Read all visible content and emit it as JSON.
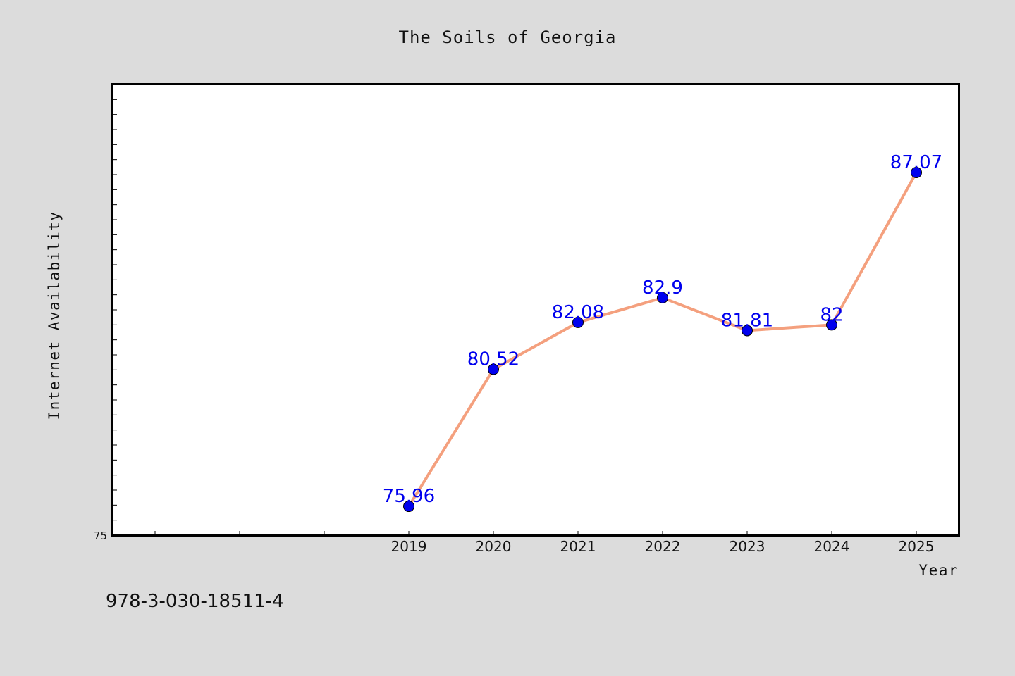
{
  "chart_data": {
    "type": "line",
    "title": "The Soils of Georgia",
    "xlabel": "Year",
    "ylabel": "Internet Availability",
    "x": [
      "2019",
      "2020",
      "2021",
      "2022",
      "2023",
      "2024",
      "2025"
    ],
    "values": [
      75.96,
      80.52,
      82.08,
      82.9,
      81.81,
      82,
      87.07
    ],
    "data_labels": [
      "75.96",
      "80.52",
      "82.08",
      "82.9",
      "81.81",
      "82",
      "87.07"
    ],
    "ylim": [
      75,
      90
    ],
    "y_tick_labels": [
      "75"
    ],
    "grid": false,
    "line_color": "#f4a07e",
    "marker_color": "#0000ee",
    "label_color": "#0000ee"
  },
  "footer": {
    "isbn": "978-3-030-18511-4"
  }
}
